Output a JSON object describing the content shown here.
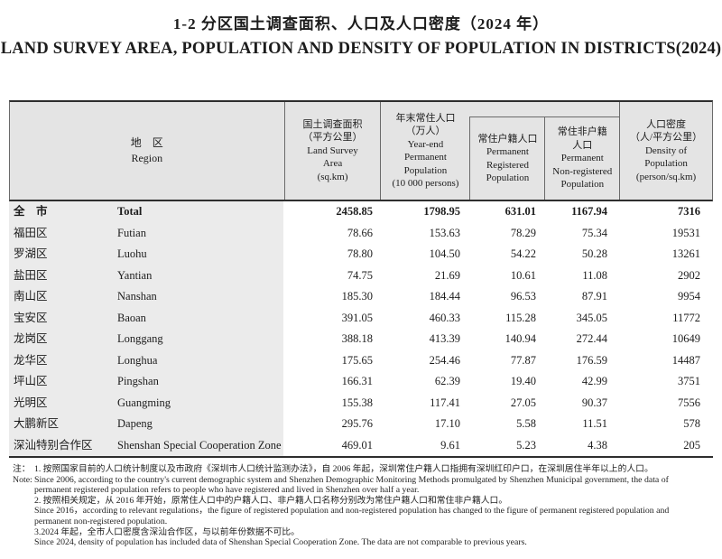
{
  "page": {
    "title_zh": "1-2  分区国土调查面积、人口及人口密度（2024 年）",
    "title_en": "LAND SURVEY AREA, POPULATION AND DENSITY OF POPULATION IN DISTRICTS(2024)"
  },
  "table": {
    "headers": {
      "region": [
        "地　区",
        "Region"
      ],
      "land_survey": [
        "国土调查面积",
        "（平方公里）",
        "Land Survey",
        "Area",
        "(sq.km)"
      ],
      "yearend_population": [
        "年末常住人口",
        "（万人）",
        "Year-end",
        "Permanent",
        "Population",
        "(10 000 persons)"
      ],
      "registered": [
        "常住户籍人口",
        "Permanent",
        "Registered",
        "Population"
      ],
      "non_registered": [
        "常住非户籍",
        "人口",
        "Permanent",
        "Non-registered",
        "Population"
      ],
      "density": [
        "人口密度",
        "（人/平方公里）",
        "Density of",
        "Population",
        "(person/sq.km)"
      ]
    },
    "rows": [
      {
        "zh": "全　市",
        "en": "Total",
        "values": [
          "2458.85",
          "1798.95",
          "631.01",
          "1167.94",
          "7316"
        ]
      },
      {
        "zh": "福田区",
        "en": "Futian",
        "values": [
          "78.66",
          "153.63",
          "78.29",
          "75.34",
          "19531"
        ]
      },
      {
        "zh": "罗湖区",
        "en": "Luohu",
        "values": [
          "78.80",
          "104.50",
          "54.22",
          "50.28",
          "13261"
        ]
      },
      {
        "zh": "盐田区",
        "en": "Yantian",
        "values": [
          "74.75",
          "21.69",
          "10.61",
          "11.08",
          "2902"
        ]
      },
      {
        "zh": "南山区",
        "en": "Nanshan",
        "values": [
          "185.30",
          "184.44",
          "96.53",
          "87.91",
          "9954"
        ]
      },
      {
        "zh": "宝安区",
        "en": "Baoan",
        "values": [
          "391.05",
          "460.33",
          "115.28",
          "345.05",
          "11772"
        ]
      },
      {
        "zh": "龙岗区",
        "en": "Longgang",
        "values": [
          "388.18",
          "413.39",
          "140.94",
          "272.44",
          "10649"
        ]
      },
      {
        "zh": "龙华区",
        "en": "Longhua",
        "values": [
          "175.65",
          "254.46",
          "77.87",
          "176.59",
          "14487"
        ]
      },
      {
        "zh": "坪山区",
        "en": "Pingshan",
        "values": [
          "166.31",
          "62.39",
          "19.40",
          "42.99",
          "3751"
        ]
      },
      {
        "zh": "光明区",
        "en": "Guangming",
        "values": [
          "155.38",
          "117.41",
          "27.05",
          "90.37",
          "7556"
        ]
      },
      {
        "zh": "大鹏新区",
        "en": "Dapeng",
        "values": [
          "295.76",
          "17.10",
          "5.58",
          "11.51",
          "578"
        ]
      },
      {
        "zh": "深汕特别合作区",
        "en": "Shenshan Special Cooperation Zone",
        "values": [
          "469.01",
          "9.61",
          "5.23",
          "4.38",
          "205"
        ]
      }
    ]
  },
  "notes": [
    {
      "label": "注：",
      "text": "1. 按照国家目前的人口统计制度以及市政府《深圳市人口统计监测办法》，自 2006 年起，深圳常住户籍人口指拥有深圳红印户口，在深圳居住半年以上的人口。"
    },
    {
      "label": "Note:",
      "text": "Since 2006, according to the country's current demographic system and Shenzhen Demographic Monitoring Methods promulgated by Shenzhen Municipal government, the data of"
    },
    {
      "text": "permanent registered population refers to people who have registered and lived in Shenzhen over half a year."
    },
    {
      "text": "2. 按照相关规定，从 2016 年开始，原常住人口中的户籍人口、非户籍人口名称分别改为常住户籍人口和常住非户籍人口。"
    },
    {
      "text": "Since 2016，according to relevant regulations，the figure of registered population and non-registered population has changed to the figure of permanent registered population and"
    },
    {
      "text": "permanent non-registered population."
    },
    {
      "text": "3.2024 年起，全市人口密度含深汕合作区，与以前年份数据不可比。"
    },
    {
      "text": "Since 2024, density of population has included data of Shenshan Special Cooperation Zone. The data are not comparable to previous years."
    }
  ]
}
